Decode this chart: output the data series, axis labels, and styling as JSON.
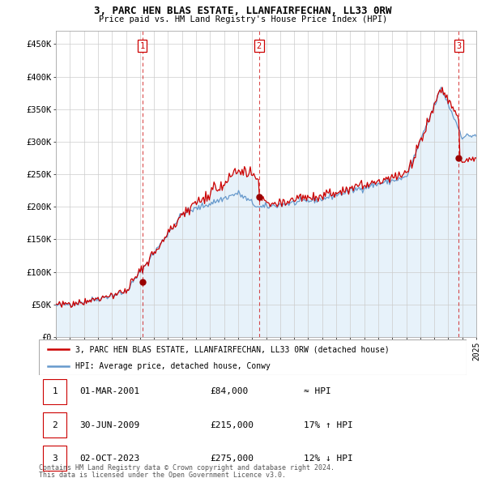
{
  "title": "3, PARC HEN BLAS ESTATE, LLANFAIRFECHAN, LL33 0RW",
  "subtitle": "Price paid vs. HM Land Registry's House Price Index (HPI)",
  "ylim": [
    0,
    470000
  ],
  "yticks": [
    0,
    50000,
    100000,
    150000,
    200000,
    250000,
    300000,
    350000,
    400000,
    450000
  ],
  "ytick_labels": [
    "£0",
    "£50K",
    "£100K",
    "£150K",
    "£200K",
    "£250K",
    "£300K",
    "£350K",
    "£400K",
    "£450K"
  ],
  "x_start_year": 1995,
  "x_end_year": 2025,
  "legend_line1": "3, PARC HEN BLAS ESTATE, LLANFAIRFECHAN, LL33 0RW (detached house)",
  "legend_line2": "HPI: Average price, detached house, Conwy",
  "table_rows": [
    {
      "num": "1",
      "date": "01-MAR-2001",
      "price": "£84,000",
      "rel": "≈ HPI"
    },
    {
      "num": "2",
      "date": "30-JUN-2009",
      "price": "£215,000",
      "rel": "17% ↑ HPI"
    },
    {
      "num": "3",
      "date": "02-OCT-2023",
      "price": "£275,000",
      "rel": "12% ↓ HPI"
    }
  ],
  "footer_line1": "Contains HM Land Registry data © Crown copyright and database right 2024.",
  "footer_line2": "This data is licensed under the Open Government Licence v3.0.",
  "sale_color": "#cc0000",
  "hpi_color": "#6699cc",
  "hpi_fill_color": "#d8eaf8",
  "sale_points": [
    [
      2001.17,
      84000
    ],
    [
      2009.5,
      215000
    ],
    [
      2023.75,
      275000
    ]
  ],
  "vline_x": [
    2001.17,
    2009.5,
    2023.75
  ],
  "vline_labels": [
    "1",
    "2",
    "3"
  ]
}
